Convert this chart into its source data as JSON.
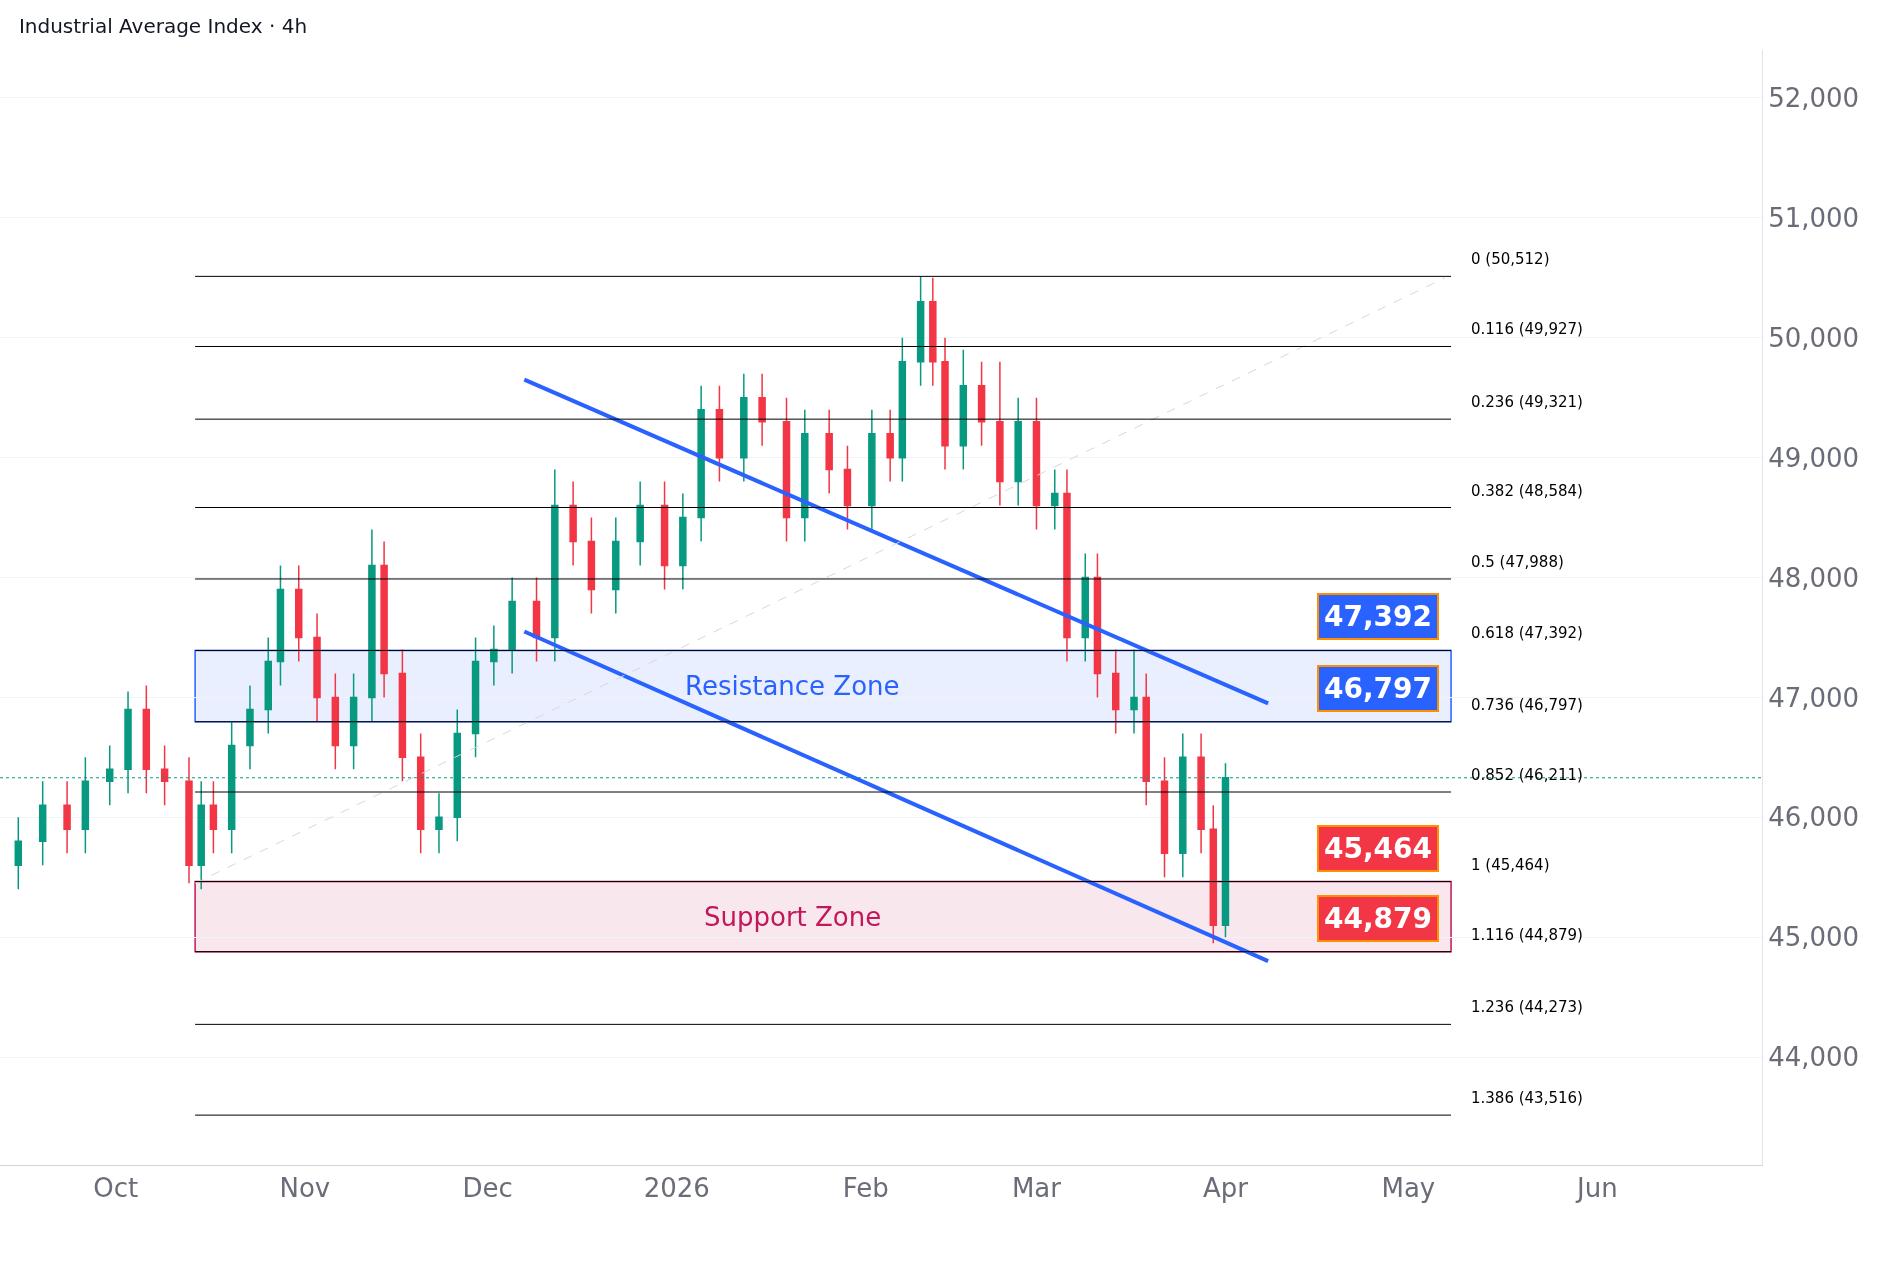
{
  "chart_data": {
    "type": "candlestick",
    "title": "Industrial Average Index · 4h",
    "x": [
      "2025-09-15",
      "2025-09-19",
      "2025-09-23",
      "2025-09-26",
      "2025-09-30",
      "2025-10-03",
      "2025-10-06",
      "2025-10-09",
      "2025-10-13",
      "2025-10-15",
      "2025-10-17",
      "2025-10-20",
      "2025-10-23",
      "2025-10-26",
      "2025-10-28",
      "2025-10-31",
      "2025-11-03",
      "2025-11-06",
      "2025-11-09",
      "2025-11-12",
      "2025-11-14",
      "2025-11-17",
      "2025-11-20",
      "2025-11-23",
      "2025-11-26",
      "2025-11-29",
      "2025-12-02",
      "2025-12-05",
      "2025-12-09",
      "2025-12-12",
      "2025-12-15",
      "2025-12-18",
      "2025-12-22",
      "2025-12-26",
      "2025-12-30",
      "2026-01-02",
      "2026-01-05",
      "2026-01-08",
      "2026-01-12",
      "2026-01-15",
      "2026-01-19",
      "2026-01-22",
      "2026-01-26",
      "2026-01-29",
      "2026-02-02",
      "2026-02-05",
      "2026-02-07",
      "2026-02-10",
      "2026-02-12",
      "2026-02-14",
      "2026-02-17",
      "2026-02-20",
      "2026-02-23",
      "2026-02-26",
      "2026-03-01",
      "2026-03-04",
      "2026-03-06",
      "2026-03-09",
      "2026-03-11",
      "2026-03-14",
      "2026-03-17",
      "2026-03-19",
      "2026-03-22",
      "2026-03-25",
      "2026-03-28",
      "2026-03-30",
      "2026-04-01"
    ],
    "ohlc": [
      [
        45600,
        46000,
        45400,
        45800
      ],
      [
        45800,
        46300,
        45600,
        46100
      ],
      [
        46100,
        46300,
        45700,
        45900
      ],
      [
        45900,
        46500,
        45700,
        46300
      ],
      [
        46300,
        46600,
        46100,
        46400
      ],
      [
        46400,
        47050,
        46200,
        46900
      ],
      [
        46900,
        47100,
        46200,
        46400
      ],
      [
        46400,
        46600,
        46100,
        46300
      ],
      [
        46300,
        46500,
        45450,
        45600
      ],
      [
        45600,
        46300,
        45400,
        46100
      ],
      [
        46100,
        46300,
        45700,
        45900
      ],
      [
        45900,
        46800,
        45700,
        46600
      ],
      [
        46600,
        47100,
        46400,
        46900
      ],
      [
        46900,
        47500,
        46700,
        47300
      ],
      [
        47300,
        48100,
        47100,
        47900
      ],
      [
        47900,
        48100,
        47300,
        47500
      ],
      [
        47500,
        47700,
        46800,
        47000
      ],
      [
        47000,
        47200,
        46400,
        46600
      ],
      [
        46600,
        47200,
        46400,
        47000
      ],
      [
        47000,
        48400,
        46800,
        48100
      ],
      [
        48100,
        48300,
        47000,
        47200
      ],
      [
        47200,
        47400,
        46300,
        46500
      ],
      [
        46500,
        46700,
        45700,
        45900
      ],
      [
        45900,
        46200,
        45700,
        46000
      ],
      [
        46000,
        46900,
        45800,
        46700
      ],
      [
        46700,
        47500,
        46500,
        47300
      ],
      [
        47300,
        47600,
        47100,
        47400
      ],
      [
        47400,
        48000,
        47200,
        47800
      ],
      [
        47800,
        48000,
        47300,
        47500
      ],
      [
        47500,
        48900,
        47300,
        48600
      ],
      [
        48600,
        48800,
        48100,
        48300
      ],
      [
        48300,
        48500,
        47700,
        47900
      ],
      [
        47900,
        48500,
        47700,
        48300
      ],
      [
        48300,
        48800,
        48100,
        48600
      ],
      [
        48600,
        48800,
        47900,
        48100
      ],
      [
        48100,
        48700,
        47900,
        48500
      ],
      [
        48500,
        49600,
        48300,
        49400
      ],
      [
        49400,
        49600,
        48800,
        49000
      ],
      [
        49000,
        49700,
        48800,
        49500
      ],
      [
        49500,
        49700,
        49100,
        49300
      ],
      [
        49300,
        49500,
        48300,
        48500
      ],
      [
        48500,
        49400,
        48300,
        49200
      ],
      [
        49200,
        49400,
        48700,
        48900
      ],
      [
        48900,
        49100,
        48400,
        48600
      ],
      [
        48600,
        49400,
        48400,
        49200
      ],
      [
        49200,
        49400,
        48800,
        49000
      ],
      [
        49000,
        50000,
        48800,
        49800
      ],
      [
        49800,
        50512,
        49600,
        50300
      ],
      [
        50300,
        50500,
        49600,
        49800
      ],
      [
        49800,
        50000,
        48900,
        49100
      ],
      [
        49100,
        49900,
        48900,
        49600
      ],
      [
        49600,
        49800,
        49100,
        49300
      ],
      [
        49300,
        49800,
        48600,
        48800
      ],
      [
        48800,
        49500,
        48600,
        49300
      ],
      [
        49300,
        49500,
        48400,
        48600
      ],
      [
        48600,
        48900,
        48400,
        48700
      ],
      [
        48700,
        48900,
        47300,
        47500
      ],
      [
        47500,
        48200,
        47300,
        48000
      ],
      [
        48000,
        48200,
        47000,
        47200
      ],
      [
        47200,
        47400,
        46700,
        46900
      ],
      [
        46900,
        47400,
        46700,
        47000
      ],
      [
        47000,
        47200,
        46100,
        46300
      ],
      [
        46300,
        46500,
        45500,
        45700
      ],
      [
        45700,
        46700,
        45500,
        46500
      ],
      [
        46500,
        46700,
        45700,
        45900
      ],
      [
        45900,
        46100,
        44950,
        45100
      ],
      [
        45100,
        46450,
        45000,
        46330
      ]
    ],
    "colors": [
      "#089981",
      "#089981",
      "#f23645",
      "#089981",
      "#089981",
      "#089981",
      "#f23645",
      "#f23645",
      "#f23645",
      "#089981",
      "#f23645",
      "#089981",
      "#089981",
      "#089981",
      "#089981",
      "#f23645",
      "#f23645",
      "#f23645",
      "#089981",
      "#089981",
      "#f23645",
      "#f23645",
      "#f23645",
      "#089981",
      "#089981",
      "#089981",
      "#089981",
      "#089981",
      "#f23645",
      "#089981",
      "#f23645",
      "#f23645",
      "#089981",
      "#089981",
      "#f23645",
      "#089981",
      "#089981",
      "#f23645",
      "#089981",
      "#f23645",
      "#f23645",
      "#089981",
      "#f23645",
      "#f23645",
      "#089981",
      "#f23645",
      "#089981",
      "#089981",
      "#f23645",
      "#f23645",
      "#089981",
      "#f23645",
      "#f23645",
      "#089981",
      "#f23645",
      "#089981",
      "#f23645",
      "#089981",
      "#f23645",
      "#f23645",
      "#089981",
      "#f23645",
      "#f23645",
      "#089981",
      "#f23645",
      "#f23645",
      "#089981"
    ],
    "series": [
      {
        "type": "line",
        "x": [
          "2025-12-07",
          "2026-04-08"
        ],
        "values": [
          49650,
          46950
        ],
        "color": "#2962ff"
      },
      {
        "type": "line",
        "x": [
          "2025-12-07",
          "2026-04-08"
        ],
        "values": [
          47550,
          44800
        ],
        "color": "#2962ff"
      },
      {
        "type": "line",
        "x": [
          "2025-10-14",
          "2026-05-07"
        ],
        "values": [
          45450,
          50500
        ],
        "color": "#d8d8d8",
        "line_style": "dashed"
      }
    ],
    "xlim": [
      "2025-09-12",
      "2026-06-28"
    ],
    "xticks": [
      {
        "value": "2025-10-01",
        "label": "Oct"
      },
      {
        "value": "2025-11-01",
        "label": "Nov"
      },
      {
        "value": "2025-12-01",
        "label": "Dec"
      },
      {
        "value": "2026-01-01",
        "label": "2026"
      },
      {
        "value": "2026-02-01",
        "label": "Feb"
      },
      {
        "value": "2026-03-01",
        "label": "Mar"
      },
      {
        "value": "2026-04-01",
        "label": "Apr"
      },
      {
        "value": "2026-05-01",
        "label": "May"
      },
      {
        "value": "2026-06-01",
        "label": "Jun"
      }
    ],
    "ylim": [
      43100,
      52400
    ],
    "yticks": [
      {
        "value": 44000,
        "label": "44,000"
      },
      {
        "value": 45000,
        "label": "45,000"
      },
      {
        "value": 46000,
        "label": "46,000"
      },
      {
        "value": 47000,
        "label": "47,000"
      },
      {
        "value": 48000,
        "label": "48,000"
      },
      {
        "value": 49000,
        "label": "49,000"
      },
      {
        "value": 50000,
        "label": "50,000"
      },
      {
        "value": 51000,
        "label": "51,000"
      },
      {
        "value": 52000,
        "label": "52,000"
      }
    ],
    "grid": "y",
    "ref_lines": [
      {
        "axis": "y",
        "value": 50512,
        "label": "0 (50,512)",
        "color": "#000000"
      },
      {
        "axis": "y",
        "value": 49927,
        "label": "0.116 (49,927)",
        "color": "#000000"
      },
      {
        "axis": "y",
        "value": 49321,
        "label": "0.236 (49,321)",
        "color": "#000000"
      },
      {
        "axis": "y",
        "value": 48584,
        "label": "0.382 (48,584)",
        "color": "#000000"
      },
      {
        "axis": "y",
        "value": 47988,
        "label": "0.5 (47,988)",
        "color": "#000000"
      },
      {
        "axis": "y",
        "value": 47392,
        "label": "0.618 (47,392)",
        "color": "#000000"
      },
      {
        "axis": "y",
        "value": 46797,
        "label": "0.736 (46,797)",
        "color": "#000000"
      },
      {
        "axis": "y",
        "value": 46211,
        "label": "0.852 (46,211)",
        "color": "#000000"
      },
      {
        "axis": "y",
        "value": 45464,
        "label": "1 (45,464)",
        "color": "#000000"
      },
      {
        "axis": "y",
        "value": 44879,
        "label": "1.116 (44,879)",
        "color": "#000000"
      },
      {
        "axis": "y",
        "value": 44273,
        "label": "1.236 (44,273)",
        "color": "#000000"
      },
      {
        "axis": "y",
        "value": 43516,
        "label": "1.386 (43,516)",
        "color": "#000000"
      },
      {
        "axis": "y",
        "value": 46330,
        "color": "#089981",
        "line_style": "dotted"
      }
    ],
    "bands": [
      {
        "axis": "y",
        "from": 46797,
        "to": 47392,
        "label": "Resistance Zone",
        "color": "#2962ff"
      },
      {
        "axis": "y",
        "from": 44879,
        "to": 45464,
        "label": "Support Zone",
        "color": "#c2185b"
      }
    ],
    "annotations": [
      {
        "text": "47,392",
        "x": "2026-04-26",
        "y": 47392
      },
      {
        "text": "46,797",
        "x": "2026-04-26",
        "y": 46797
      },
      {
        "text": "45,464",
        "x": "2026-04-26",
        "y": 45464
      },
      {
        "text": "44,879",
        "x": "2026-04-26",
        "y": 44879
      }
    ]
  }
}
